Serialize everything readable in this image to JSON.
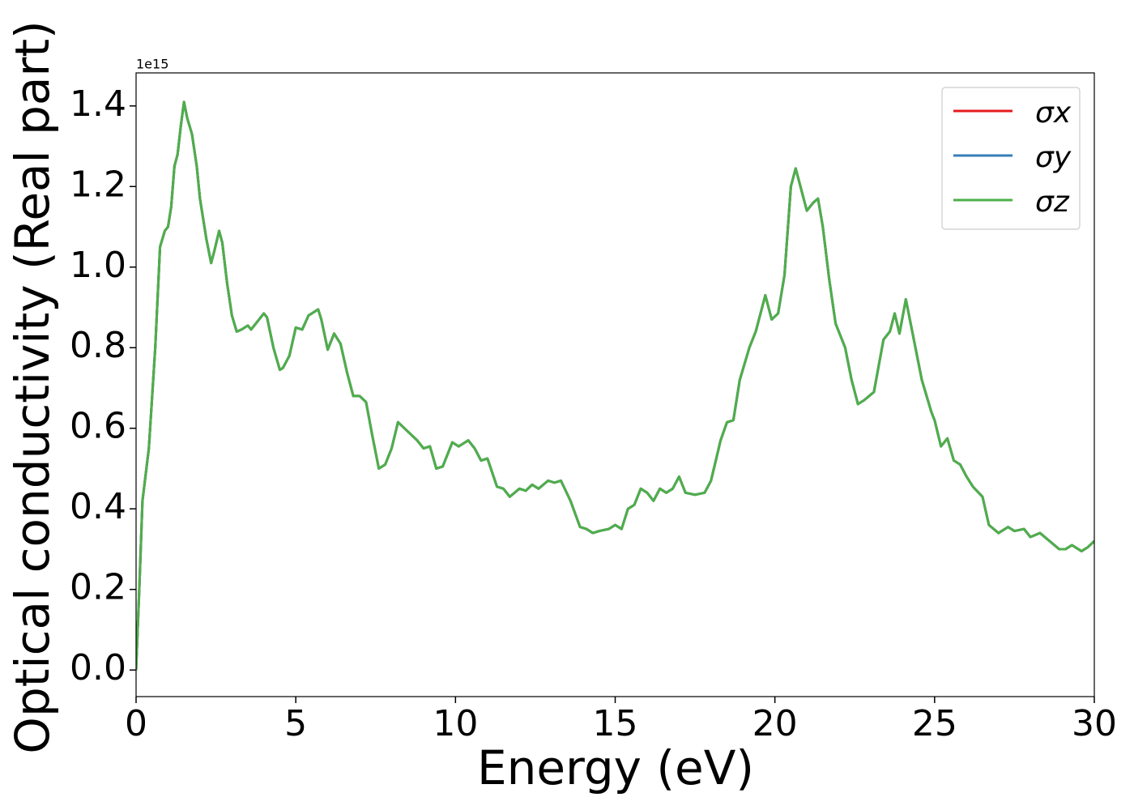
{
  "chart_data": {
    "type": "line",
    "xlabel": "Energy (eV)",
    "ylabel": "Optical conductivity (Real part)",
    "y_offset_label": "1e15",
    "xlim": [
      0,
      30
    ],
    "xticks": [
      0,
      5,
      10,
      15,
      20,
      25,
      30
    ],
    "ylim": [
      -0.066,
      1.482
    ],
    "yticks": [
      {
        "value": 0,
        "label": "0.0"
      },
      0.2,
      0.4,
      0.6,
      0.8,
      {
        "value": 1,
        "label": "1.0"
      },
      1.2,
      1.4
    ],
    "legend": "upper right",
    "x": [
      0,
      0.1,
      0.2,
      0.4,
      0.6,
      0.75,
      0.9,
      1.0,
      1.1,
      1.2,
      1.3,
      1.4,
      1.5,
      1.6,
      1.75,
      1.9,
      2.0,
      2.2,
      2.35,
      2.45,
      2.6,
      2.7,
      2.85,
      3.0,
      3.15,
      3.3,
      3.5,
      3.6,
      3.8,
      4.0,
      4.1,
      4.3,
      4.5,
      4.6,
      4.8,
      5.0,
      5.2,
      5.4,
      5.5,
      5.7,
      5.8,
      6.0,
      6.2,
      6.4,
      6.6,
      6.8,
      7.0,
      7.2,
      7.4,
      7.6,
      7.8,
      8.0,
      8.2,
      8.4,
      8.6,
      8.8,
      9.0,
      9.2,
      9.4,
      9.6,
      9.9,
      10.1,
      10.4,
      10.6,
      10.8,
      11.0,
      11.3,
      11.5,
      11.7,
      12.0,
      12.2,
      12.4,
      12.6,
      12.9,
      13.1,
      13.3,
      13.6,
      13.9,
      14.1,
      14.3,
      14.5,
      14.8,
      15.0,
      15.2,
      15.4,
      15.6,
      15.8,
      16.0,
      16.2,
      16.4,
      16.6,
      16.8,
      17.0,
      17.2,
      17.5,
      17.8,
      18.0,
      18.3,
      18.5,
      18.7,
      18.9,
      19.2,
      19.4,
      19.7,
      19.9,
      20.1,
      20.3,
      20.5,
      20.65,
      20.8,
      21.0,
      21.2,
      21.35,
      21.5,
      21.7,
      21.9,
      22.2,
      22.4,
      22.6,
      22.8,
      23.1,
      23.4,
      23.6,
      23.75,
      23.9,
      24.1,
      24.3,
      24.6,
      24.9,
      25.0,
      25.2,
      25.4,
      25.6,
      25.8,
      26.0,
      26.2,
      26.5,
      26.7,
      27.0,
      27.3,
      27.5,
      27.8,
      28.0,
      28.3,
      28.6,
      28.9,
      29.1,
      29.3,
      29.6,
      29.8,
      30.0
    ],
    "series": [
      {
        "name": "σx",
        "color": "#e41a1c",
        "values": [
          0,
          0.2,
          0.42,
          0.55,
          0.8,
          1.05,
          1.09,
          1.1,
          1.15,
          1.25,
          1.28,
          1.35,
          1.41,
          1.37,
          1.33,
          1.25,
          1.17,
          1.07,
          1.01,
          1.04,
          1.09,
          1.06,
          0.96,
          0.88,
          0.84,
          0.845,
          0.855,
          0.845,
          0.865,
          0.885,
          0.875,
          0.8,
          0.745,
          0.75,
          0.78,
          0.85,
          0.845,
          0.88,
          0.885,
          0.895,
          0.87,
          0.795,
          0.835,
          0.81,
          0.74,
          0.68,
          0.68,
          0.665,
          0.58,
          0.5,
          0.51,
          0.55,
          0.615,
          0.6,
          0.585,
          0.57,
          0.55,
          0.555,
          0.5,
          0.505,
          0.565,
          0.555,
          0.57,
          0.55,
          0.52,
          0.525,
          0.455,
          0.45,
          0.43,
          0.45,
          0.445,
          0.46,
          0.45,
          0.47,
          0.465,
          0.47,
          0.42,
          0.355,
          0.35,
          0.34,
          0.345,
          0.35,
          0.36,
          0.35,
          0.4,
          0.41,
          0.45,
          0.44,
          0.42,
          0.45,
          0.44,
          0.45,
          0.48,
          0.44,
          0.435,
          0.44,
          0.47,
          0.57,
          0.615,
          0.62,
          0.72,
          0.8,
          0.84,
          0.93,
          0.87,
          0.885,
          0.98,
          1.2,
          1.245,
          1.2,
          1.14,
          1.16,
          1.17,
          1.1,
          0.97,
          0.86,
          0.8,
          0.72,
          0.66,
          0.67,
          0.69,
          0.82,
          0.84,
          0.885,
          0.835,
          0.92,
          0.84,
          0.72,
          0.64,
          0.62,
          0.555,
          0.575,
          0.52,
          0.51,
          0.48,
          0.455,
          0.43,
          0.36,
          0.34,
          0.355,
          0.345,
          0.35,
          0.33,
          0.34,
          0.32,
          0.3,
          0.3,
          0.31,
          0.295,
          0.305,
          0.32
        ]
      },
      {
        "name": "σy",
        "color": "#377eb8",
        "values": [
          0,
          0.2,
          0.42,
          0.55,
          0.8,
          1.05,
          1.09,
          1.1,
          1.15,
          1.25,
          1.28,
          1.35,
          1.41,
          1.37,
          1.33,
          1.25,
          1.17,
          1.07,
          1.01,
          1.04,
          1.09,
          1.06,
          0.96,
          0.88,
          0.84,
          0.845,
          0.855,
          0.845,
          0.865,
          0.885,
          0.875,
          0.8,
          0.745,
          0.75,
          0.78,
          0.85,
          0.845,
          0.88,
          0.885,
          0.895,
          0.87,
          0.795,
          0.835,
          0.81,
          0.74,
          0.68,
          0.68,
          0.665,
          0.58,
          0.5,
          0.51,
          0.55,
          0.615,
          0.6,
          0.585,
          0.57,
          0.55,
          0.555,
          0.5,
          0.505,
          0.565,
          0.555,
          0.57,
          0.55,
          0.52,
          0.525,
          0.455,
          0.45,
          0.43,
          0.45,
          0.445,
          0.46,
          0.45,
          0.47,
          0.465,
          0.47,
          0.42,
          0.355,
          0.35,
          0.34,
          0.345,
          0.35,
          0.36,
          0.35,
          0.4,
          0.41,
          0.45,
          0.44,
          0.42,
          0.45,
          0.44,
          0.45,
          0.48,
          0.44,
          0.435,
          0.44,
          0.47,
          0.57,
          0.615,
          0.62,
          0.72,
          0.8,
          0.84,
          0.93,
          0.87,
          0.885,
          0.98,
          1.2,
          1.245,
          1.2,
          1.14,
          1.16,
          1.17,
          1.1,
          0.97,
          0.86,
          0.8,
          0.72,
          0.66,
          0.67,
          0.69,
          0.82,
          0.84,
          0.885,
          0.835,
          0.92,
          0.84,
          0.72,
          0.64,
          0.62,
          0.555,
          0.575,
          0.52,
          0.51,
          0.48,
          0.455,
          0.43,
          0.36,
          0.34,
          0.355,
          0.345,
          0.35,
          0.33,
          0.34,
          0.32,
          0.3,
          0.3,
          0.31,
          0.295,
          0.305,
          0.32
        ]
      },
      {
        "name": "σz",
        "color": "#4daf4a",
        "values": [
          0,
          0.2,
          0.42,
          0.55,
          0.8,
          1.05,
          1.09,
          1.1,
          1.15,
          1.25,
          1.28,
          1.35,
          1.41,
          1.37,
          1.33,
          1.25,
          1.17,
          1.07,
          1.01,
          1.04,
          1.09,
          1.06,
          0.96,
          0.88,
          0.84,
          0.845,
          0.855,
          0.845,
          0.865,
          0.885,
          0.875,
          0.8,
          0.745,
          0.75,
          0.78,
          0.85,
          0.845,
          0.88,
          0.885,
          0.895,
          0.87,
          0.795,
          0.835,
          0.81,
          0.74,
          0.68,
          0.68,
          0.665,
          0.58,
          0.5,
          0.51,
          0.55,
          0.615,
          0.6,
          0.585,
          0.57,
          0.55,
          0.555,
          0.5,
          0.505,
          0.565,
          0.555,
          0.57,
          0.55,
          0.52,
          0.525,
          0.455,
          0.45,
          0.43,
          0.45,
          0.445,
          0.46,
          0.45,
          0.47,
          0.465,
          0.47,
          0.42,
          0.355,
          0.35,
          0.34,
          0.345,
          0.35,
          0.36,
          0.35,
          0.4,
          0.41,
          0.45,
          0.44,
          0.42,
          0.45,
          0.44,
          0.45,
          0.48,
          0.44,
          0.435,
          0.44,
          0.47,
          0.57,
          0.615,
          0.62,
          0.72,
          0.8,
          0.84,
          0.93,
          0.87,
          0.885,
          0.98,
          1.2,
          1.245,
          1.2,
          1.14,
          1.16,
          1.17,
          1.1,
          0.97,
          0.86,
          0.8,
          0.72,
          0.66,
          0.67,
          0.69,
          0.82,
          0.84,
          0.885,
          0.835,
          0.92,
          0.84,
          0.72,
          0.64,
          0.62,
          0.555,
          0.575,
          0.52,
          0.51,
          0.48,
          0.455,
          0.43,
          0.36,
          0.34,
          0.355,
          0.345,
          0.35,
          0.33,
          0.34,
          0.32,
          0.3,
          0.3,
          0.31,
          0.295,
          0.305,
          0.32
        ]
      }
    ]
  }
}
